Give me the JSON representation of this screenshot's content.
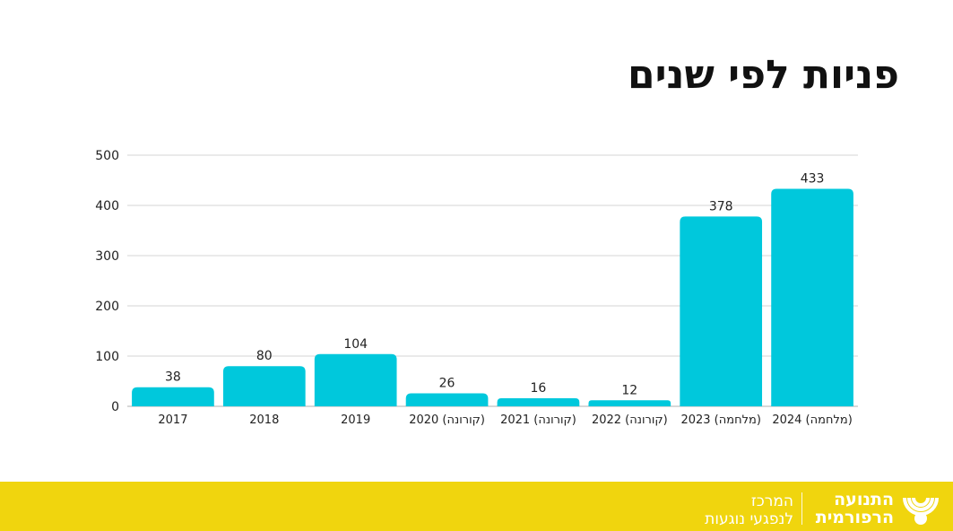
{
  "page": {
    "title": "פניות לפי שנים"
  },
  "footer": {
    "org_name_line1": "התנועה",
    "org_name_line2": "הרפורמית",
    "center_line1": "המרכז",
    "center_line2": "לנפגעי נוגעות",
    "logo_icon": "reform-movement-logo-icon",
    "background_color": "#f0d50e"
  },
  "chart_data": {
    "type": "bar",
    "categories": [
      "2017",
      "2018",
      "2019",
      "2020 (קורונה)",
      "2021 (קורונה)",
      "2022 (קורונה)",
      "2023 (מלחמה)",
      "2024 (מלחמה)"
    ],
    "values": [
      38,
      80,
      104,
      26,
      16,
      12,
      378,
      433
    ],
    "title": "פניות לפי שנים",
    "xlabel": "",
    "ylabel": "",
    "ylim": [
      0,
      500
    ],
    "yticks": [
      0,
      100,
      200,
      300,
      400,
      500
    ],
    "data_labels": true,
    "grid": true,
    "bar_color": "#00c8dc"
  }
}
